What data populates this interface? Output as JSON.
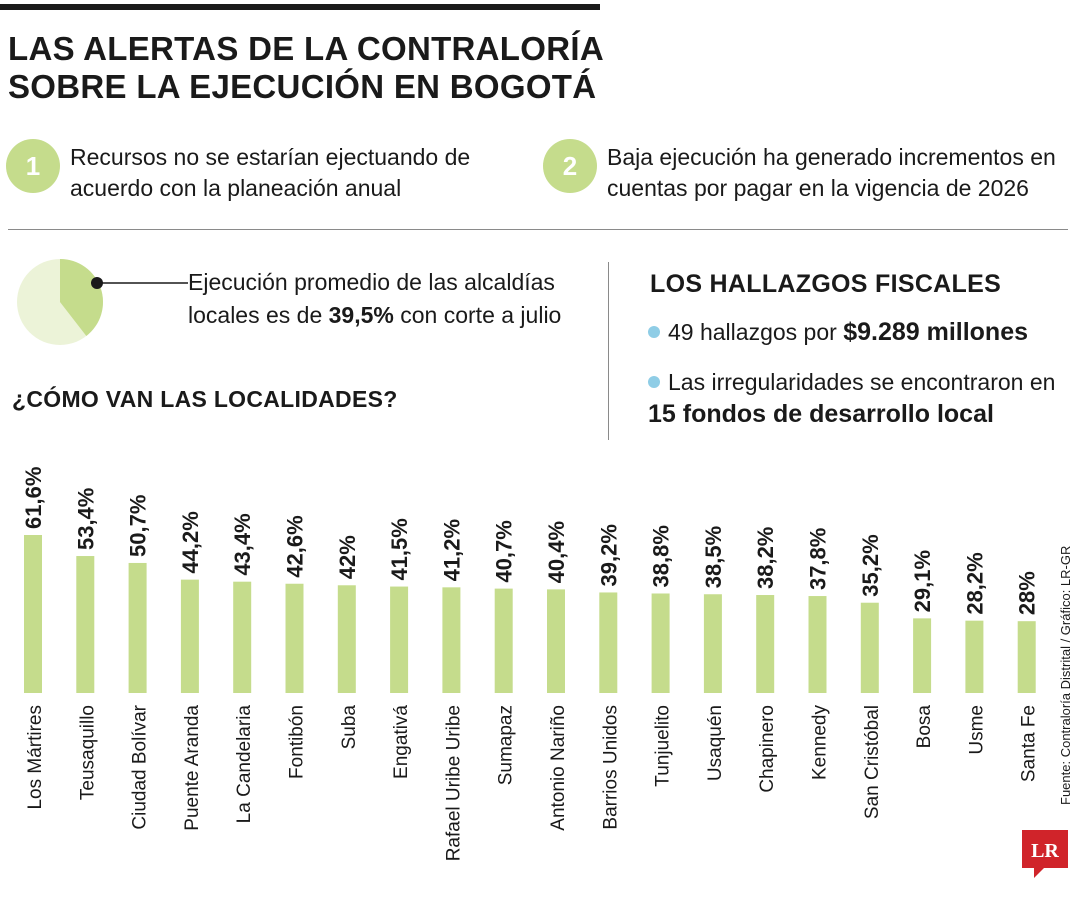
{
  "header": {
    "title_line1": "LAS ALERTAS DE LA CONTRALORÍA",
    "title_line2": "SOBRE LA EJECUCIÓN EN BOGOTÁ"
  },
  "alerts": [
    {
      "number": "1",
      "line1": "Recursos no se estarían ejectuando de",
      "line2": "acuerdo con la planeación anual"
    },
    {
      "number": "2",
      "line1": "Baja ejecución ha generado incrementos en",
      "line2": "cuentas por pagar en la vigencia de 2026"
    }
  ],
  "pie_note": {
    "value": 39.5,
    "line1": "Ejecución promedio de las alcaldías",
    "line2_prefix": "locales es de ",
    "line2_bold": "39,5%",
    "line2_suffix": " con corte a julio",
    "colors": {
      "filled": "#c5dc8c",
      "rest": "#ecf3d8"
    }
  },
  "findings": {
    "title": "LOS HALLAZGOS FISCALES",
    "item1_text": "49 hallazgos por ",
    "item1_bold": "$9.289 millones",
    "item2_text": "Las irregularidades se encontraron en",
    "item2_bold": "15 fondos de desarrollo local",
    "bullet_color": "#8fcde6"
  },
  "section_title": "¿CÓMO VAN LAS LOCALIDADES?",
  "source": "Fuente: Contraloría Distrital / Gráfico: LR-GR",
  "logo_text": "LR",
  "chart_data": {
    "type": "bar",
    "title": "¿CÓMO VAN LAS LOCALIDADES?",
    "categories": [
      "Los Mártires",
      "Teusaquillo",
      "Ciudad Bolívar",
      "Puente Aranda",
      "La Candelaria",
      "Fontibón",
      "Suba",
      "Engativá",
      "Rafael Uribe Uribe",
      "Sumapaz",
      "Antonio Nariño",
      "Barrios Unidos",
      "Tunjuelito",
      "Usaquén",
      "Chapinero",
      "Kennedy",
      "San Cristóbal",
      "Bosa",
      "Usme",
      "Santa Fe"
    ],
    "values": [
      61.6,
      53.4,
      50.7,
      44.2,
      43.4,
      42.6,
      42,
      41.5,
      41.2,
      40.7,
      40.4,
      39.2,
      38.8,
      38.5,
      38.2,
      37.8,
      35.2,
      29.1,
      28.2,
      28
    ],
    "labels": [
      "61,6%",
      "53,4%",
      "50,7%",
      "44,2%",
      "43,4%",
      "42,6%",
      "42%",
      "41,5%",
      "41,2%",
      "40,7%",
      "40,4%",
      "39,2%",
      "38,8%",
      "38,5%",
      "38,2%",
      "37,8%",
      "35,2%",
      "29,1%",
      "28,2%",
      "28%"
    ],
    "ylabel": "",
    "xlabel": "",
    "ylim": [
      0,
      61.6
    ],
    "bar_color": "#c5dc8c"
  }
}
